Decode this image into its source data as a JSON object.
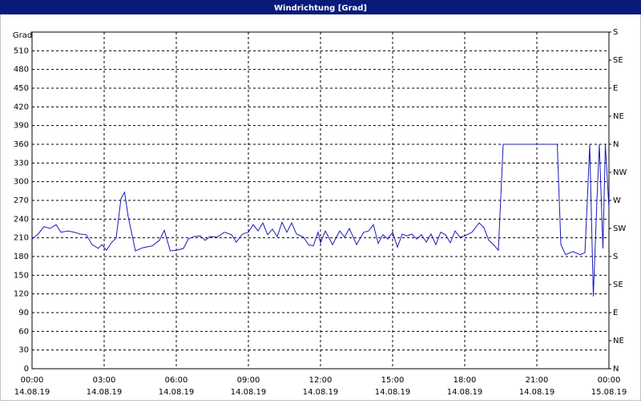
{
  "chart_data": {
    "type": "line",
    "title": "Windrichtung [Grad]",
    "ylabel": "Grad",
    "color": "#1a1ab8",
    "grid": true,
    "xlim": [
      0,
      24
    ],
    "xticks": [
      {
        "value": 0,
        "label": "00:00",
        "date": "14.08.19"
      },
      {
        "value": 3,
        "label": "03:00",
        "date": "14.08.19"
      },
      {
        "value": 6,
        "label": "06:00",
        "date": "14.08.19"
      },
      {
        "value": 9,
        "label": "09:00",
        "date": "14.08.19"
      },
      {
        "value": 12,
        "label": "12:00",
        "date": "14.08.19"
      },
      {
        "value": 15,
        "label": "15:00",
        "date": "14.08.19"
      },
      {
        "value": 18,
        "label": "18:00",
        "date": "14.08.19"
      },
      {
        "value": 21,
        "label": "21:00",
        "date": "14.08.19"
      },
      {
        "value": 24,
        "label": "00:00",
        "date": "15.08.19"
      }
    ],
    "ylim": [
      0,
      540
    ],
    "yticks": [
      0,
      30,
      60,
      90,
      120,
      150,
      180,
      210,
      240,
      270,
      300,
      330,
      360,
      390,
      420,
      450,
      480,
      510
    ],
    "y2lim": [
      0,
      540
    ],
    "y2ticks": [
      {
        "value": 0,
        "label": "N"
      },
      {
        "value": 45,
        "label": "NE"
      },
      {
        "value": 90,
        "label": "E"
      },
      {
        "value": 135,
        "label": "SE"
      },
      {
        "value": 180,
        "label": "S"
      },
      {
        "value": 225,
        "label": "SW"
      },
      {
        "value": 270,
        "label": "W"
      },
      {
        "value": 315,
        "label": "NW"
      },
      {
        "value": 360,
        "label": "N"
      },
      {
        "value": 405,
        "label": "NE"
      },
      {
        "value": 450,
        "label": "E"
      },
      {
        "value": 495,
        "label": "SE"
      },
      {
        "value": 540,
        "label": "S"
      }
    ],
    "x": [
      0,
      0.25,
      0.5,
      0.75,
      1.0,
      1.2,
      1.5,
      1.75,
      2.0,
      2.25,
      2.5,
      2.75,
      2.9,
      3.1,
      3.3,
      3.5,
      3.7,
      3.85,
      4.0,
      4.3,
      4.6,
      5.0,
      5.3,
      5.5,
      5.75,
      6.0,
      6.3,
      6.5,
      6.75,
      7.0,
      7.2,
      7.4,
      7.7,
      8.0,
      8.3,
      8.5,
      8.75,
      9.0,
      9.2,
      9.4,
      9.6,
      9.8,
      10.0,
      10.2,
      10.4,
      10.6,
      10.8,
      11.0,
      11.3,
      11.5,
      11.7,
      11.9,
      12.0,
      12.2,
      12.5,
      12.8,
      13.0,
      13.2,
      13.5,
      13.8,
      14.0,
      14.2,
      14.4,
      14.6,
      14.8,
      15.0,
      15.2,
      15.4,
      15.6,
      15.8,
      16.0,
      16.2,
      16.4,
      16.6,
      16.8,
      17.0,
      17.2,
      17.4,
      17.6,
      17.8,
      18.0,
      18.3,
      18.6,
      18.8,
      19.0,
      19.2,
      19.4,
      19.6,
      21.85,
      22.0,
      22.2,
      22.5,
      22.8,
      23.0,
      23.1,
      23.2,
      23.35,
      23.5,
      23.6,
      23.75,
      23.85,
      24.0
    ],
    "values": [
      208,
      216,
      228,
      225,
      231,
      219,
      221,
      219,
      216,
      215,
      199,
      193,
      199,
      190,
      202,
      210,
      273,
      283,
      244,
      189,
      194,
      197,
      206,
      222,
      189,
      190,
      193,
      208,
      212,
      213,
      206,
      212,
      211,
      219,
      215,
      203,
      216,
      219,
      231,
      221,
      234,
      215,
      224,
      212,
      235,
      219,
      234,
      216,
      211,
      199,
      197,
      219,
      202,
      221,
      199,
      221,
      211,
      225,
      199,
      219,
      221,
      231,
      201,
      215,
      208,
      219,
      195,
      216,
      213,
      216,
      208,
      215,
      203,
      216,
      199,
      219,
      215,
      202,
      221,
      211,
      213,
      219,
      234,
      226,
      206,
      199,
      190,
      360,
      360,
      199,
      183,
      188,
      183,
      186,
      270,
      360,
      116,
      270,
      360,
      193,
      360,
      257
    ]
  }
}
